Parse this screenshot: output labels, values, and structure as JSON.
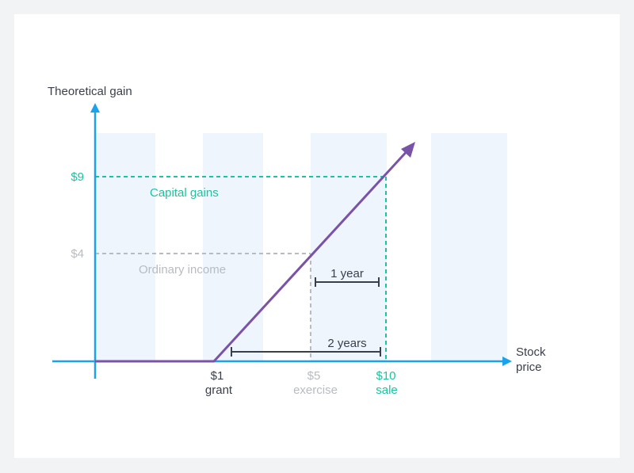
{
  "axes": {
    "y_title": "Theoretical gain",
    "x_title_line1": "Stock",
    "x_title_line2": "price"
  },
  "y_ticks": [
    {
      "label": "$9",
      "value": 9,
      "color": "#19c4a0"
    },
    {
      "label": "$4",
      "value": 4,
      "color": "#b8bcc2"
    }
  ],
  "x_ticks": [
    {
      "value_label": "$1",
      "caption": "grant",
      "value": 1,
      "color": "#3a3f4b"
    },
    {
      "value_label": "$5",
      "caption": "exercise",
      "value": 5,
      "color": "#b8bcc2"
    },
    {
      "value_label": "$10",
      "caption": "sale",
      "value": 10,
      "color": "#19c4a0"
    }
  ],
  "regions": {
    "capital_gains": "Capital gains",
    "ordinary_income": "Ordinary income"
  },
  "durations": {
    "one_year": "1 year",
    "two_years": "2 years"
  },
  "colors": {
    "axis": "#1aa3ec",
    "line": "#7a52a8",
    "capital": "#19c4a0",
    "ordinary": "#b8bcc2",
    "bracket": "#3a3f4b",
    "band": "#eef5fd"
  }
}
